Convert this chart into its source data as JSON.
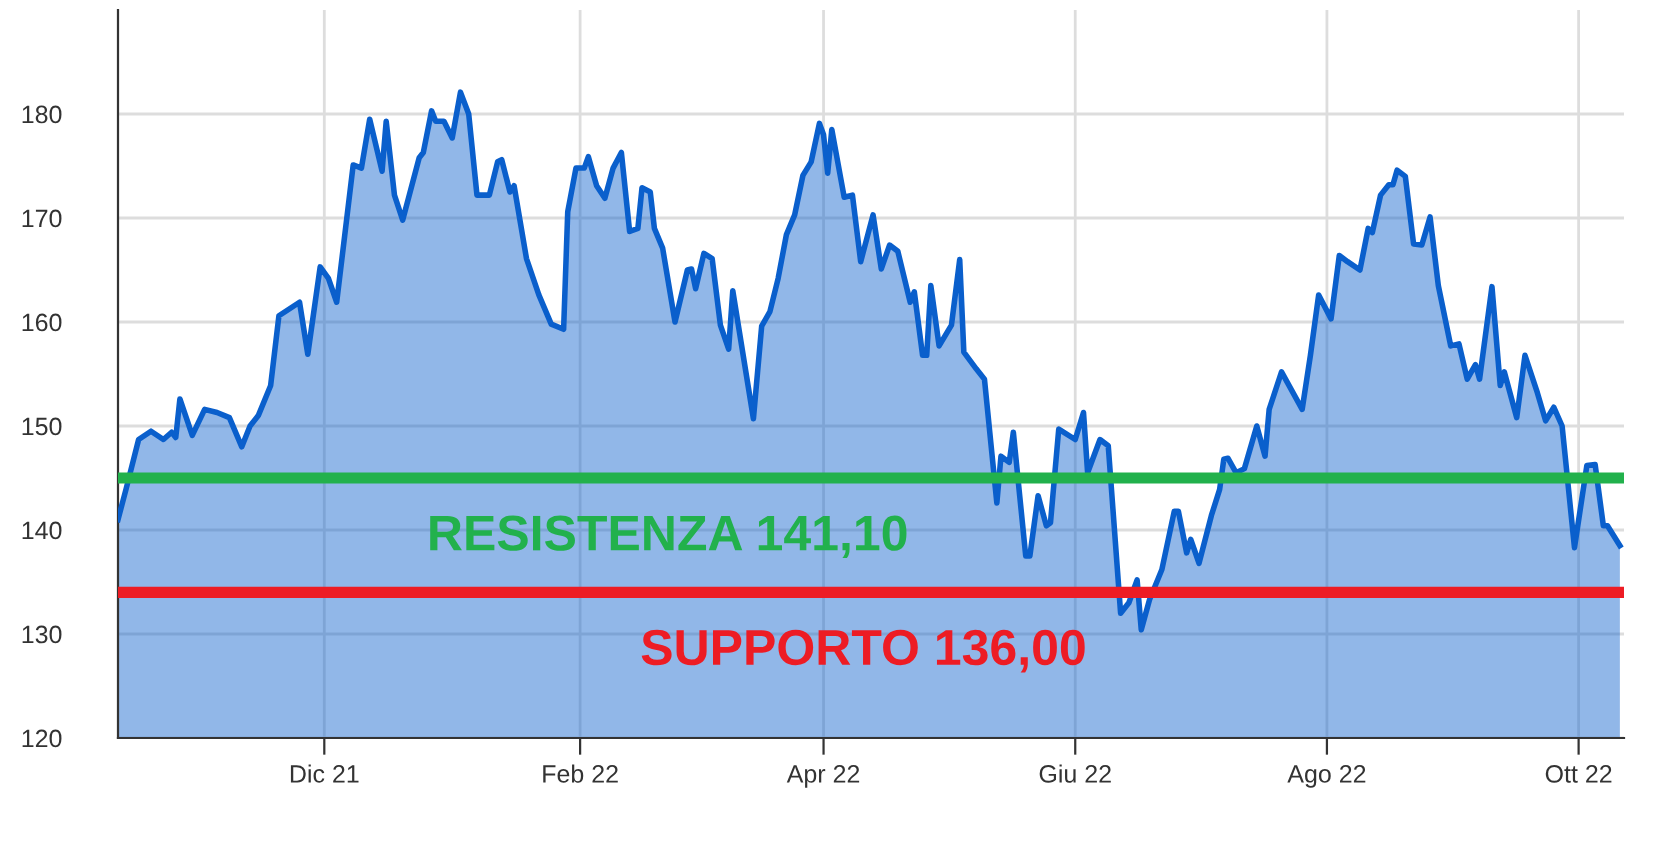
{
  "chart_data": {
    "type": "area",
    "series": [
      {
        "color": "#0a5fcc",
        "x": [
          "2021-10-12",
          "2021-10-14",
          "2021-10-17",
          "2021-10-20",
          "2021-10-23",
          "2021-10-25",
          "2021-10-26",
          "2021-10-27",
          "2021-10-30",
          "2021-11-02",
          "2021-11-05",
          "2021-11-08",
          "2021-11-11",
          "2021-11-13",
          "2021-11-15",
          "2021-11-18",
          "2021-11-20",
          "2021-11-25",
          "2021-11-27",
          "2021-11-30",
          "2021-12-02",
          "2021-12-04",
          "2021-12-08",
          "2021-12-10",
          "2021-12-12",
          "2021-12-15",
          "2021-12-16",
          "2021-12-18",
          "2021-12-20",
          "2021-12-24",
          "2021-12-25",
          "2021-12-27",
          "2021-12-28",
          "2021-12-30",
          "2022-01-01",
          "2022-01-03",
          "2022-01-05",
          "2022-01-07",
          "2022-01-10",
          "2022-01-12",
          "2022-01-13",
          "2022-01-15",
          "2022-01-16",
          "2022-01-19",
          "2022-01-22",
          "2022-01-25",
          "2022-01-28",
          "2022-01-29",
          "2022-01-31",
          "2022-02-02",
          "2022-02-03",
          "2022-02-05",
          "2022-02-07",
          "2022-02-09",
          "2022-02-11",
          "2022-02-13",
          "2022-02-15",
          "2022-02-16",
          "2022-02-18",
          "2022-02-19",
          "2022-02-21",
          "2022-02-24",
          "2022-02-27",
          "2022-02-28",
          "2022-03-01",
          "2022-03-03",
          "2022-03-05",
          "2022-03-07",
          "2022-03-09",
          "2022-03-10",
          "2022-03-15",
          "2022-03-17",
          "2022-03-19",
          "2022-03-21",
          "2022-03-23",
          "2022-03-25",
          "2022-03-27",
          "2022-03-29",
          "2022-03-31",
          "2022-04-01",
          "2022-04-02",
          "2022-04-03",
          "2022-04-06",
          "2022-04-08",
          "2022-04-10",
          "2022-04-13",
          "2022-04-15",
          "2022-04-17",
          "2022-04-19",
          "2022-04-22",
          "2022-04-23",
          "2022-04-25",
          "2022-04-26",
          "2022-04-27",
          "2022-04-29",
          "2022-05-02",
          "2022-05-04",
          "2022-05-05",
          "2022-05-08",
          "2022-05-10",
          "2022-05-13",
          "2022-05-14",
          "2022-05-16",
          "2022-05-17",
          "2022-05-20",
          "2022-05-21",
          "2022-05-23",
          "2022-05-25",
          "2022-05-26",
          "2022-05-28",
          "2022-06-01",
          "2022-06-03",
          "2022-06-04",
          "2022-06-07",
          "2022-06-09",
          "2022-06-12",
          "2022-06-14",
          "2022-06-16",
          "2022-06-17",
          "2022-06-19",
          "2022-06-22",
          "2022-06-25",
          "2022-06-26",
          "2022-06-28",
          "2022-06-29",
          "2022-07-01",
          "2022-07-04",
          "2022-07-06",
          "2022-07-07",
          "2022-07-08",
          "2022-07-10",
          "2022-07-12",
          "2022-07-15",
          "2022-07-17",
          "2022-07-18",
          "2022-07-21",
          "2022-07-26",
          "2022-07-28",
          "2022-07-30",
          "2022-08-02",
          "2022-08-04",
          "2022-08-06",
          "2022-08-09",
          "2022-08-11",
          "2022-08-12",
          "2022-08-14",
          "2022-08-16",
          "2022-08-17",
          "2022-08-18",
          "2022-08-20",
          "2022-08-22",
          "2022-08-24",
          "2022-08-26",
          "2022-08-28",
          "2022-08-31",
          "2022-09-02",
          "2022-09-04",
          "2022-09-06",
          "2022-09-07",
          "2022-09-10",
          "2022-09-12",
          "2022-09-13",
          "2022-09-16",
          "2022-09-18",
          "2022-09-21",
          "2022-09-23",
          "2022-09-25",
          "2022-09-27",
          "2022-09-30",
          "2022-10-03",
          "2022-10-05",
          "2022-10-07",
          "2022-10-08",
          "2022-10-11"
        ],
        "values": [
          141,
          144,
          148.7,
          149.5,
          148.7,
          149.4,
          148.9,
          152.6,
          149.1,
          151.6,
          151.3,
          150.8,
          148,
          150,
          151,
          153.9,
          160.6,
          161.9,
          156.9,
          165.3,
          164.2,
          161.9,
          175.1,
          174.8,
          179.5,
          174.5,
          179.3,
          172.2,
          169.8,
          175.8,
          176.3,
          180.3,
          179.3,
          179.3,
          177.7,
          182.1,
          180,
          172.2,
          172.2,
          175.4,
          175.6,
          172.5,
          173.1,
          166.1,
          162.6,
          159.8,
          159.3,
          170.6,
          174.8,
          174.8,
          175.9,
          173.1,
          171.9,
          174.8,
          176.3,
          168.7,
          169,
          172.9,
          172.5,
          169,
          167.1,
          160,
          165,
          165.1,
          163.2,
          166.6,
          166.1,
          159.7,
          157.4,
          163,
          150.7,
          159.6,
          161,
          164.2,
          168.4,
          170.3,
          174.1,
          175.4,
          179.1,
          178,
          174.3,
          178.5,
          172,
          172.2,
          165.8,
          170.3,
          165.1,
          167.4,
          166.8,
          161.9,
          162.9,
          156.8,
          156.8,
          163.5,
          157.7,
          159.7,
          166,
          157.1,
          155.5,
          154.5,
          142.6,
          147.1,
          146.5,
          149.4,
          137.5,
          137.5,
          143.3,
          140.4,
          140.7,
          149.7,
          148.7,
          151.3,
          145.5,
          148.7,
          148.1,
          132,
          133,
          135.2,
          130.4,
          133.3,
          136.2,
          141.8,
          141.8,
          137.8,
          139.1,
          136.8,
          141.4,
          143.9,
          146.8,
          146.9,
          145.5,
          145.9,
          150,
          147.1,
          151.6,
          155.2,
          151.6,
          156.8,
          162.6,
          160.3,
          166.4,
          165.8,
          165,
          169,
          168.6,
          172.2,
          173.2,
          173.2,
          174.6,
          174,
          167.5,
          167.4,
          170.1,
          163.5,
          157.7,
          157.9,
          154.5,
          155.9,
          154.5,
          163.4,
          153.9,
          155.2,
          150.8,
          156.8,
          153.2,
          150.5,
          151.8,
          150,
          138.3,
          146.2,
          146.3,
          140.4,
          140.4,
          138.5
        ]
      }
    ],
    "xlim": [
      "2021-10-12",
      "2022-10-12"
    ],
    "xticks": [
      {
        "value": "2021-12-01",
        "label": "Dic 21"
      },
      {
        "value": "2022-02-01",
        "label": "Feb 22"
      },
      {
        "value": "2022-04-01",
        "label": "Apr 22"
      },
      {
        "value": "2022-06-01",
        "label": "Giu 22"
      },
      {
        "value": "2022-08-01",
        "label": "Ago 22"
      },
      {
        "value": "2022-10-01",
        "label": "Ott 22"
      }
    ],
    "ylim": [
      120,
      190
    ],
    "yticks": [
      120,
      130,
      140,
      150,
      160,
      170,
      180
    ],
    "grid": true,
    "ref_lines": [
      {
        "axis": "y",
        "value": 145,
        "color": "#22b14c"
      },
      {
        "axis": "y",
        "value": 134,
        "color": "#ed1c24"
      }
    ],
    "annotations": [
      "RESISTENZA 141,10",
      "SUPPORTO 136,00"
    ]
  }
}
